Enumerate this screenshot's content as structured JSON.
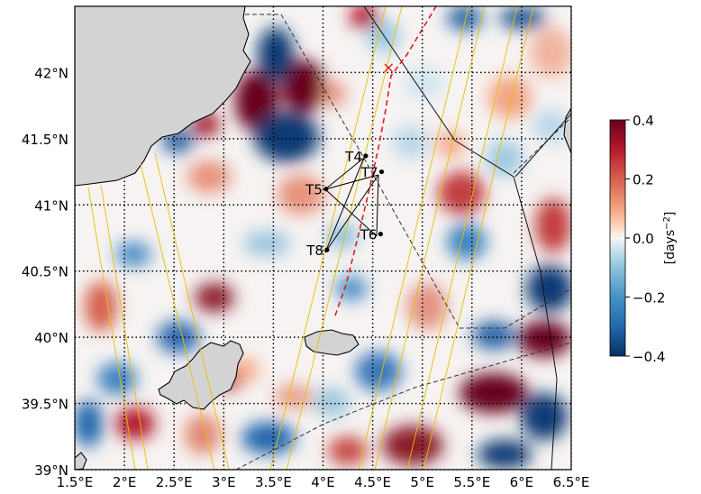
{
  "map": {
    "lon_range": [
      1.5,
      6.5
    ],
    "lat_range": [
      39.0,
      42.5
    ],
    "lon_ticks": [
      "1.5°E",
      "2°E",
      "2.5°E",
      "3°E",
      "3.5°E",
      "4°E",
      "4.5°E",
      "5°E",
      "5.5°E",
      "6°E",
      "6.5°E"
    ],
    "lat_ticks": [
      "39°N",
      "39.5°N",
      "40°N",
      "40.5°N",
      "41°N",
      "41.5°N",
      "42°N"
    ],
    "lat_tick_values": [
      39.0,
      39.5,
      40.0,
      40.5,
      41.0,
      41.5,
      42.0
    ],
    "grid": "dotted",
    "land_color": "#d3d3d3"
  },
  "stations": [
    {
      "label": "T4",
      "lon": 4.43,
      "lat": 41.37
    },
    {
      "label": "T5",
      "lon": 4.03,
      "lat": 41.12
    },
    {
      "label": "T6",
      "lon": 4.58,
      "lat": 40.78
    },
    {
      "label": "T7",
      "lon": 4.59,
      "lat": 41.25
    },
    {
      "label": "T8",
      "lon": 4.04,
      "lat": 40.66
    }
  ],
  "marker": {
    "symbol": "×",
    "lon": 4.66,
    "lat": 42.04,
    "color": "#e41a1c"
  },
  "track_color": "#e41a1c",
  "colorbar": {
    "ticks": [
      "0.4",
      "0.2",
      "0.0",
      "−0.2",
      "−0.4"
    ],
    "tick_values": [
      0.4,
      0.2,
      0.0,
      -0.2,
      -0.4
    ],
    "range": [
      -0.4,
      0.4
    ],
    "label_text": "[days",
    "label_sup": "−2",
    "label_close": "]",
    "cmap": "RdBu_r"
  },
  "colors": {
    "positive": "#67001f",
    "negative": "#053061",
    "neutral": "#f7f7f7",
    "swath": "#e8c000"
  }
}
